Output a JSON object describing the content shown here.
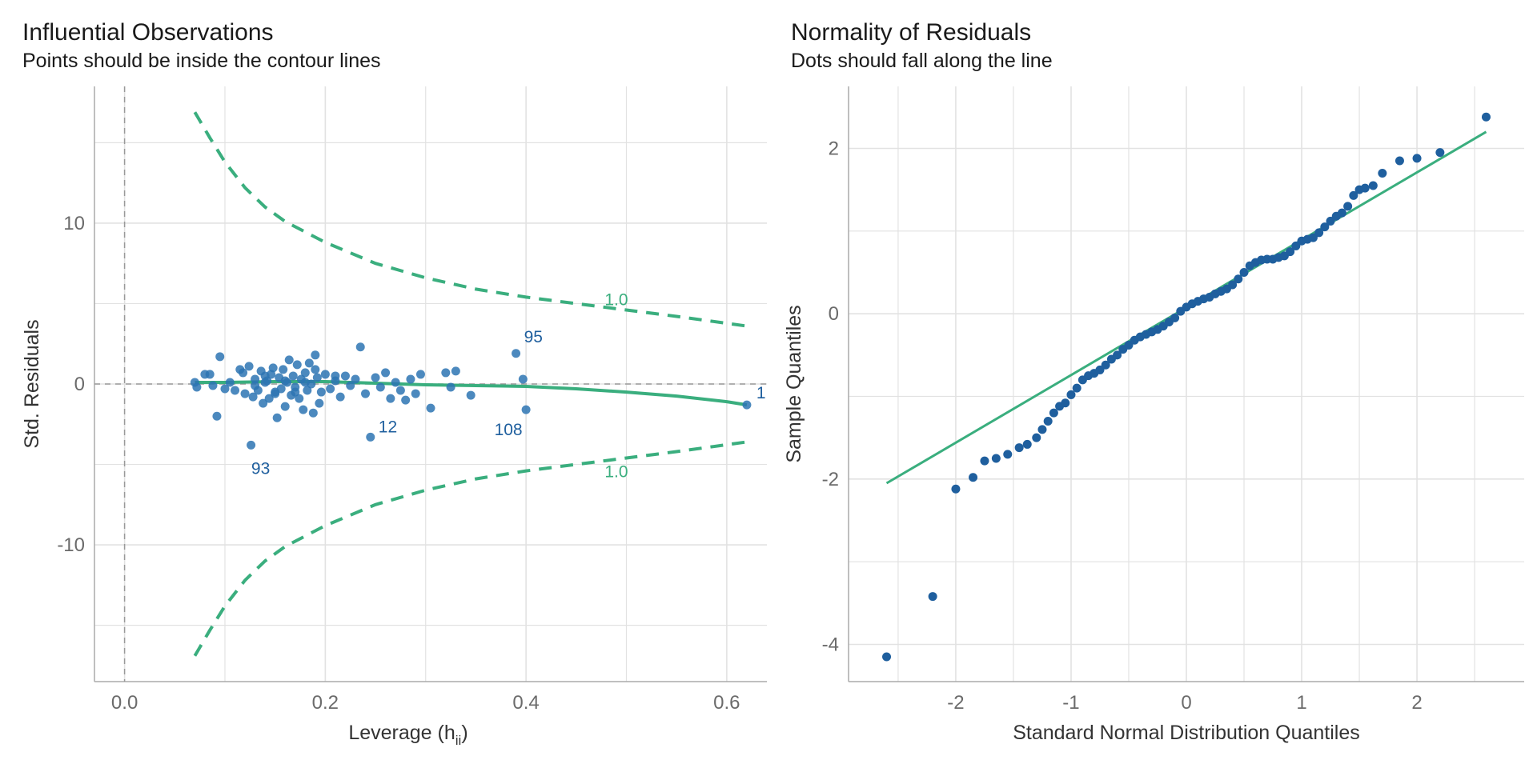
{
  "colors": {
    "point": "#1f5f9e",
    "point_light": "#2d74b3",
    "curve": "#3aae7e",
    "grid": "#e2e2e2",
    "axis": "#aaaaaa",
    "refline": "#999999"
  },
  "chart_data": [
    {
      "type": "scatter",
      "title": "Influential Observations",
      "subtitle": "Points should be inside the contour lines",
      "xlabel": "Leverage (h",
      "xlabel_sub": "ii",
      "xlabel_close": ")",
      "ylabel": "Std. Residuals",
      "xlim": [
        -0.03,
        0.64
      ],
      "ylim": [
        -18.5,
        18.5
      ],
      "x_ticks": [
        0.0,
        0.2,
        0.4,
        0.6
      ],
      "x_tick_labels": [
        "0.0",
        "0.2",
        "0.4",
        "0.6"
      ],
      "y_ticks": [
        -10,
        0,
        10
      ],
      "y_tick_labels": [
        "-10",
        "0",
        "10"
      ],
      "grid": true,
      "reference_lines": {
        "vertical_x": 0,
        "horizontal_y": 0,
        "style": "dashed"
      },
      "contour_label": "1.0",
      "contours": {
        "x": [
          0.07,
          0.085,
          0.1,
          0.12,
          0.14,
          0.16,
          0.2,
          0.25,
          0.3,
          0.35,
          0.4,
          0.45,
          0.5,
          0.55,
          0.62
        ],
        "upper": [
          16.9,
          15.3,
          13.8,
          12.2,
          11.0,
          10.1,
          8.8,
          7.5,
          6.6,
          5.9,
          5.4,
          5.0,
          4.6,
          4.2,
          3.6
        ],
        "lower": [
          -16.9,
          -15.3,
          -13.8,
          -12.2,
          -11.0,
          -10.1,
          -8.8,
          -7.5,
          -6.6,
          -5.9,
          -5.4,
          -5.0,
          -4.6,
          -4.2,
          -3.6
        ]
      },
      "contour_labels": [
        {
          "text": "1.0",
          "x": 0.49,
          "y": 5.3
        },
        {
          "text": "1.0",
          "x": 0.49,
          "y": -5.4
        }
      ],
      "smooth": {
        "x": [
          0.07,
          0.1,
          0.15,
          0.2,
          0.25,
          0.3,
          0.35,
          0.4,
          0.45,
          0.5,
          0.55,
          0.6,
          0.62
        ],
        "y": [
          0.1,
          0.1,
          0.15,
          0.15,
          0.05,
          -0.05,
          -0.1,
          -0.15,
          -0.3,
          -0.5,
          -0.75,
          -1.1,
          -1.3
        ]
      },
      "points": [
        [
          0.07,
          0.1
        ],
        [
          0.072,
          -0.2
        ],
        [
          0.08,
          0.6
        ],
        [
          0.085,
          0.6
        ],
        [
          0.088,
          -0.1
        ],
        [
          0.092,
          -2.0
        ],
        [
          0.095,
          1.7
        ],
        [
          0.1,
          -0.3
        ],
        [
          0.105,
          0.1
        ],
        [
          0.11,
          -0.4
        ],
        [
          0.115,
          0.9
        ],
        [
          0.118,
          0.7
        ],
        [
          0.12,
          -0.6
        ],
        [
          0.124,
          1.1
        ],
        [
          0.126,
          -3.8
        ],
        [
          0.128,
          -0.8
        ],
        [
          0.13,
          0.3
        ],
        [
          0.133,
          -0.4
        ],
        [
          0.136,
          0.8
        ],
        [
          0.138,
          -1.2
        ],
        [
          0.14,
          0.5
        ],
        [
          0.142,
          0.2
        ],
        [
          0.144,
          -0.9
        ],
        [
          0.146,
          0.6
        ],
        [
          0.148,
          1.0
        ],
        [
          0.15,
          -0.5
        ],
        [
          0.152,
          -2.1
        ],
        [
          0.154,
          0.4
        ],
        [
          0.156,
          -0.3
        ],
        [
          0.158,
          0.9
        ],
        [
          0.16,
          -1.4
        ],
        [
          0.162,
          0.1
        ],
        [
          0.164,
          1.5
        ],
        [
          0.166,
          -0.7
        ],
        [
          0.168,
          0.5
        ],
        [
          0.17,
          -0.2
        ],
        [
          0.172,
          1.2
        ],
        [
          0.174,
          -0.9
        ],
        [
          0.176,
          0.3
        ],
        [
          0.178,
          -1.6
        ],
        [
          0.18,
          0.7
        ],
        [
          0.182,
          -0.4
        ],
        [
          0.184,
          1.3
        ],
        [
          0.186,
          0.0
        ],
        [
          0.188,
          -1.8
        ],
        [
          0.19,
          1.8
        ],
        [
          0.192,
          0.4
        ],
        [
          0.194,
          -1.2
        ],
        [
          0.196,
          -0.5
        ],
        [
          0.2,
          0.6
        ],
        [
          0.205,
          -0.3
        ],
        [
          0.21,
          0.2
        ],
        [
          0.215,
          -0.8
        ],
        [
          0.22,
          0.5
        ],
        [
          0.225,
          -0.1
        ],
        [
          0.23,
          0.3
        ],
        [
          0.235,
          2.3
        ],
        [
          0.24,
          -0.6
        ],
        [
          0.245,
          -3.3
        ],
        [
          0.25,
          0.4
        ],
        [
          0.255,
          -0.2
        ],
        [
          0.26,
          0.7
        ],
        [
          0.265,
          -0.9
        ],
        [
          0.27,
          0.1
        ],
        [
          0.275,
          -0.4
        ],
        [
          0.28,
          -1.0
        ],
        [
          0.285,
          0.3
        ],
        [
          0.29,
          -0.6
        ],
        [
          0.295,
          0.6
        ],
        [
          0.305,
          -1.5
        ],
        [
          0.32,
          0.7
        ],
        [
          0.325,
          -0.2
        ],
        [
          0.33,
          0.8
        ],
        [
          0.345,
          -0.7
        ],
        [
          0.39,
          1.9
        ],
        [
          0.397,
          0.3
        ],
        [
          0.4,
          -1.6
        ],
        [
          0.62,
          -1.3
        ],
        [
          0.15,
          -0.6
        ],
        [
          0.16,
          0.2
        ],
        [
          0.17,
          -0.5
        ],
        [
          0.18,
          0.1
        ],
        [
          0.19,
          0.9
        ],
        [
          0.14,
          0.1
        ],
        [
          0.13,
          -0.1
        ],
        [
          0.21,
          0.5
        ]
      ],
      "point_labels": [
        {
          "text": "95",
          "x": 0.39,
          "y": 1.9
        },
        {
          "text": "93",
          "x": 0.126,
          "y": -3.8
        },
        {
          "text": "12",
          "x": 0.245,
          "y": -3.3
        },
        {
          "text": "108",
          "x": 0.4,
          "y": -1.6
        },
        {
          "text": "1",
          "x": 0.62,
          "y": -1.3
        }
      ]
    },
    {
      "type": "scatter",
      "title": "Normality of Residuals",
      "subtitle": "Dots should fall along the line",
      "xlabel": "Standard Normal Distribution Quantiles",
      "ylabel": "Sample Quantiles",
      "xlim": [
        -2.93,
        2.93
      ],
      "ylim": [
        -4.45,
        2.75
      ],
      "x_ticks": [
        -2,
        -1,
        0,
        1,
        2
      ],
      "x_tick_labels": [
        "-2",
        "-1",
        "0",
        "1",
        "2"
      ],
      "y_ticks": [
        -4,
        -2,
        0,
        2
      ],
      "y_tick_labels": [
        "-4",
        "-2",
        "0",
        "2"
      ],
      "grid": true,
      "reference_line": {
        "x": [
          -2.6,
          2.6
        ],
        "y": [
          -2.05,
          2.2
        ]
      },
      "points": [
        [
          -2.6,
          -4.15
        ],
        [
          -2.2,
          -3.42
        ],
        [
          -2.0,
          -2.12
        ],
        [
          -1.85,
          -1.98
        ],
        [
          -1.75,
          -1.78
        ],
        [
          -1.65,
          -1.75
        ],
        [
          -1.55,
          -1.7
        ],
        [
          -1.45,
          -1.62
        ],
        [
          -1.38,
          -1.58
        ],
        [
          -1.3,
          -1.5
        ],
        [
          -1.25,
          -1.4
        ],
        [
          -1.2,
          -1.3
        ],
        [
          -1.15,
          -1.2
        ],
        [
          -1.1,
          -1.12
        ],
        [
          -1.05,
          -1.08
        ],
        [
          -1.0,
          -0.98
        ],
        [
          -0.95,
          -0.9
        ],
        [
          -0.9,
          -0.8
        ],
        [
          -0.85,
          -0.75
        ],
        [
          -0.8,
          -0.72
        ],
        [
          -0.75,
          -0.68
        ],
        [
          -0.7,
          -0.62
        ],
        [
          -0.65,
          -0.55
        ],
        [
          -0.6,
          -0.5
        ],
        [
          -0.55,
          -0.43
        ],
        [
          -0.5,
          -0.38
        ],
        [
          -0.45,
          -0.32
        ],
        [
          -0.4,
          -0.28
        ],
        [
          -0.35,
          -0.25
        ],
        [
          -0.3,
          -0.22
        ],
        [
          -0.25,
          -0.19
        ],
        [
          -0.2,
          -0.15
        ],
        [
          -0.15,
          -0.1
        ],
        [
          -0.1,
          -0.05
        ],
        [
          -0.05,
          0.03
        ],
        [
          0.0,
          0.08
        ],
        [
          0.05,
          0.12
        ],
        [
          0.1,
          0.15
        ],
        [
          0.15,
          0.18
        ],
        [
          0.2,
          0.2
        ],
        [
          0.25,
          0.24
        ],
        [
          0.3,
          0.27
        ],
        [
          0.35,
          0.3
        ],
        [
          0.4,
          0.35
        ],
        [
          0.45,
          0.42
        ],
        [
          0.5,
          0.5
        ],
        [
          0.55,
          0.58
        ],
        [
          0.6,
          0.62
        ],
        [
          0.65,
          0.65
        ],
        [
          0.7,
          0.66
        ],
        [
          0.75,
          0.66
        ],
        [
          0.8,
          0.68
        ],
        [
          0.85,
          0.7
        ],
        [
          0.9,
          0.75
        ],
        [
          0.95,
          0.82
        ],
        [
          1.0,
          0.88
        ],
        [
          1.05,
          0.9
        ],
        [
          1.1,
          0.92
        ],
        [
          1.15,
          0.98
        ],
        [
          1.2,
          1.05
        ],
        [
          1.25,
          1.12
        ],
        [
          1.3,
          1.18
        ],
        [
          1.35,
          1.22
        ],
        [
          1.4,
          1.3
        ],
        [
          1.45,
          1.43
        ],
        [
          1.5,
          1.5
        ],
        [
          1.55,
          1.52
        ],
        [
          1.62,
          1.55
        ],
        [
          1.7,
          1.7
        ],
        [
          1.85,
          1.85
        ],
        [
          2.0,
          1.88
        ],
        [
          2.2,
          1.95
        ],
        [
          2.6,
          2.38
        ]
      ]
    }
  ]
}
